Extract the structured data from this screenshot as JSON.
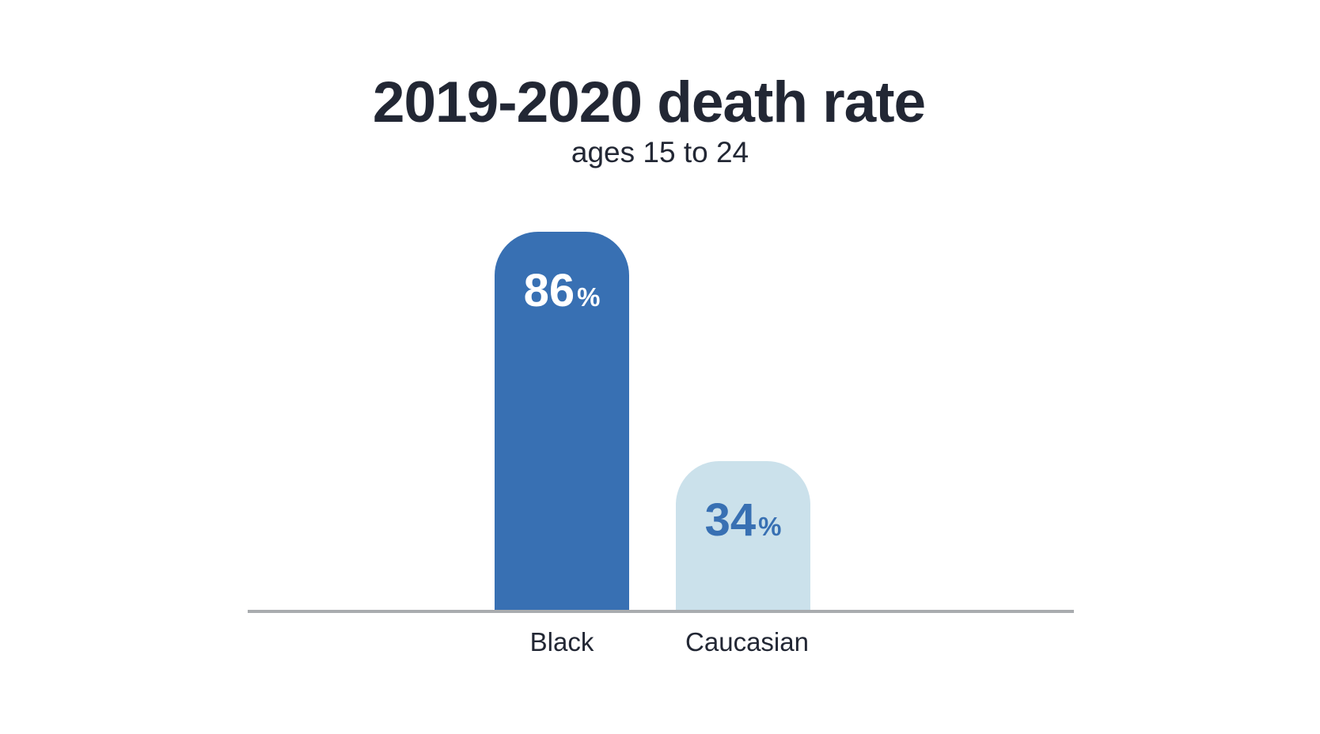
{
  "chart_data": {
    "type": "bar",
    "title": "2019-2020 death rate",
    "subtitle": "ages 15 to 24",
    "categories": [
      "Black",
      "Caucasian"
    ],
    "values": [
      86,
      34
    ],
    "unit": "%",
    "ylim": [
      0,
      100
    ],
    "grid": false,
    "legend": false,
    "xlabel": "",
    "ylabel": "",
    "bars": [
      {
        "label": "Black",
        "value": 86,
        "value_label": "86",
        "unit": "%",
        "bar_color": "#3870B3",
        "value_color": "#FFFFFF"
      },
      {
        "label": "Caucasian",
        "value": 34,
        "value_label": "34",
        "unit": "%",
        "bar_color": "#CBE1EB",
        "value_color": "#3870B3"
      }
    ],
    "colors": {
      "title_text": "#222734",
      "axis_line": "#A9ACAF",
      "background": "#FFFFFF"
    }
  }
}
